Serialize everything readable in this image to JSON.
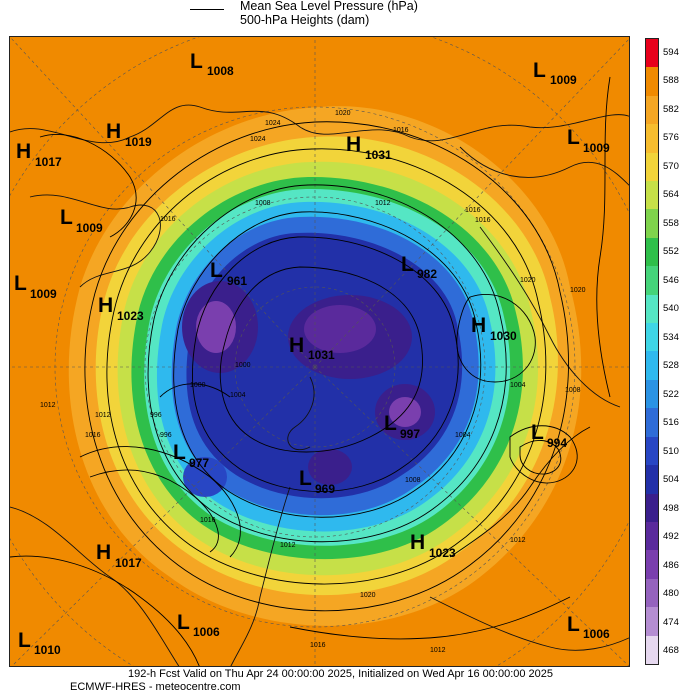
{
  "legend": {
    "line1": "Mean Sea Level Pressure (hPa)",
    "line2": "500-hPa Heights (dam)"
  },
  "colorbar": {
    "labels": [
      "594",
      "588",
      "582",
      "576",
      "570",
      "564",
      "558",
      "552",
      "546",
      "540",
      "534",
      "528",
      "522",
      "516",
      "510",
      "504",
      "498",
      "492",
      "486",
      "480",
      "474",
      "468"
    ],
    "colors": [
      "#e8001c",
      "#f08a00",
      "#f5a623",
      "#f7bd2f",
      "#f2d43a",
      "#c6e048",
      "#7fd34c",
      "#2fbf4a",
      "#45d47a",
      "#55e6c4",
      "#3fd6e6",
      "#2fb9ee",
      "#2b93e4",
      "#2f6cd8",
      "#2846c4",
      "#2230a8",
      "#3a1f8c",
      "#5a2a9c",
      "#7a3fae",
      "#9563be",
      "#b58ed2",
      "#e6d8ef"
    ]
  },
  "systems": [
    {
      "type": "L",
      "value": "1008"
    },
    {
      "type": "L",
      "value": "1009"
    },
    {
      "type": "H",
      "value": "1019"
    },
    {
      "type": "H",
      "value": "1017"
    },
    {
      "type": "H",
      "value": "1031"
    },
    {
      "type": "L",
      "value": "1009"
    },
    {
      "type": "L",
      "value": "1009"
    },
    {
      "type": "L",
      "value": "1009"
    },
    {
      "type": "H",
      "value": "1023"
    },
    {
      "type": "L",
      "value": "961"
    },
    {
      "type": "L",
      "value": "982"
    },
    {
      "type": "H",
      "value": "1030"
    },
    {
      "type": "H",
      "value": "1031"
    },
    {
      "type": "L",
      "value": "997"
    },
    {
      "type": "L",
      "value": "994"
    },
    {
      "type": "L",
      "value": "977"
    },
    {
      "type": "L",
      "value": "969"
    },
    {
      "type": "H",
      "value": "1023"
    },
    {
      "type": "H",
      "value": "1017"
    },
    {
      "type": "L",
      "value": "1006"
    },
    {
      "type": "L",
      "value": "1010"
    },
    {
      "type": "L",
      "value": "1006"
    }
  ],
  "isobars": [
    "1020",
    "1016",
    "1024",
    "1016",
    "1012",
    "1016",
    "1008",
    "996",
    "1000",
    "1004",
    "1012",
    "1016",
    "1012",
    "1020",
    "1016",
    "1012",
    "1008",
    "1004",
    "1004",
    "1008",
    "1012",
    "1016",
    "1020",
    "1024",
    "1000",
    "996",
    "1012",
    "1016",
    "1020"
  ],
  "footer": {
    "line1": "192-h Fcst Valid on Thu Apr 24 00:00:00 2025, Initialized on Wed Apr 16 00:00:00 2025",
    "line2": "ECMWF-HRES  - meteocentre.com"
  }
}
